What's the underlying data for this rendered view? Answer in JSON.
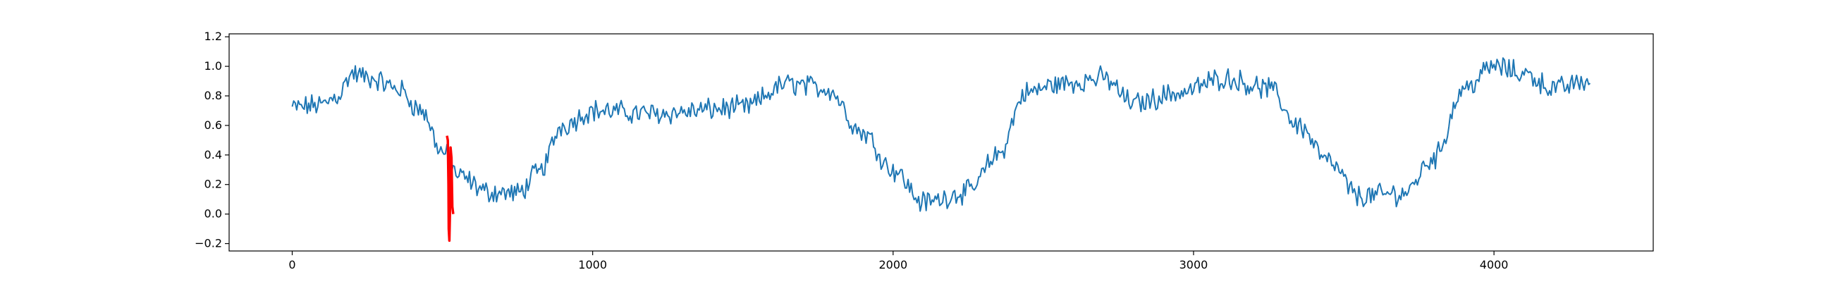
{
  "chart_data": {
    "type": "line",
    "title": "",
    "xlabel": "",
    "ylabel": "",
    "xlim": [
      -210,
      4530
    ],
    "ylim": [
      -0.25,
      1.22
    ],
    "grid": false,
    "x_ticks": [
      0,
      1000,
      2000,
      3000,
      4000
    ],
    "y_ticks": [
      -0.2,
      0.0,
      0.2,
      0.4,
      0.6,
      0.8,
      1.0,
      1.2
    ],
    "series": [
      {
        "color": "#1f77b4",
        "x_range": [
          0,
          4320
        ],
        "trend": [
          [
            0,
            0.72
          ],
          [
            100,
            0.74
          ],
          [
            150,
            0.8
          ],
          [
            200,
            0.95
          ],
          [
            260,
            0.92
          ],
          [
            350,
            0.85
          ],
          [
            430,
            0.7
          ],
          [
            500,
            0.42
          ],
          [
            560,
            0.25
          ],
          [
            650,
            0.15
          ],
          [
            750,
            0.14
          ],
          [
            820,
            0.28
          ],
          [
            900,
            0.6
          ],
          [
            1000,
            0.7
          ],
          [
            1200,
            0.68
          ],
          [
            1500,
            0.72
          ],
          [
            1650,
            0.88
          ],
          [
            1780,
            0.85
          ],
          [
            1900,
            0.55
          ],
          [
            2000,
            0.3
          ],
          [
            2100,
            0.08
          ],
          [
            2250,
            0.15
          ],
          [
            2350,
            0.4
          ],
          [
            2440,
            0.82
          ],
          [
            2550,
            0.88
          ],
          [
            2700,
            0.92
          ],
          [
            2800,
            0.75
          ],
          [
            2950,
            0.82
          ],
          [
            3100,
            0.92
          ],
          [
            3250,
            0.85
          ],
          [
            3350,
            0.6
          ],
          [
            3450,
            0.35
          ],
          [
            3550,
            0.12
          ],
          [
            3700,
            0.14
          ],
          [
            3800,
            0.38
          ],
          [
            3900,
            0.85
          ],
          [
            4000,
            1.0
          ],
          [
            4100,
            0.95
          ],
          [
            4200,
            0.85
          ],
          [
            4320,
            0.9
          ]
        ],
        "noise_amplitude": 0.06,
        "step": 5
      },
      {
        "color": "#ff0000",
        "points": [
          [
            515,
            0.53
          ],
          [
            518,
            0.5
          ],
          [
            520,
            0.2
          ],
          [
            521,
            -0.1
          ],
          [
            523,
            -0.18
          ],
          [
            525,
            0.0
          ],
          [
            527,
            0.45
          ],
          [
            530,
            0.38
          ],
          [
            533,
            0.05
          ],
          [
            536,
            0.0
          ]
        ]
      }
    ]
  }
}
